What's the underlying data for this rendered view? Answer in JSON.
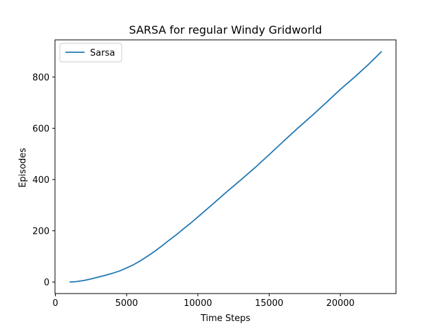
{
  "chart_data": {
    "type": "line",
    "title": "SARSA for regular Windy Gridworld",
    "xlabel": "Time Steps",
    "ylabel": "Episodes",
    "xlim": [
      -24,
      23900
    ],
    "ylim": [
      -45,
      945
    ],
    "xticks": [
      0,
      5000,
      10000,
      15000,
      20000
    ],
    "xtick_labels": [
      "0",
      "5000",
      "10000",
      "15000",
      "20000"
    ],
    "yticks": [
      0,
      200,
      400,
      600,
      800
    ],
    "ytick_labels": [
      "0",
      "200",
      "400",
      "600",
      "800"
    ],
    "grid": false,
    "legend_position": "top-left",
    "colors": {
      "series": "#1f77b4",
      "axis": "#000000",
      "legend_border": "#cccccc"
    },
    "series": [
      {
        "name": "Sarsa",
        "x": [
          1000,
          1500,
          2000,
          2500,
          3000,
          3500,
          4000,
          4500,
          5000,
          5500,
          6000,
          6500,
          7000,
          7500,
          8000,
          8500,
          9000,
          9500,
          10000,
          11000,
          12000,
          13000,
          14000,
          15000,
          16000,
          17000,
          18000,
          19000,
          20000,
          21000,
          22000,
          22900
        ],
        "y": [
          0,
          2,
          6,
          12,
          19,
          26,
          34,
          43,
          55,
          68,
          84,
          102,
          121,
          142,
          164,
          185,
          208,
          230,
          254,
          302,
          351,
          398,
          446,
          497,
          549,
          600,
          649,
          700,
          752,
          800,
          851,
          900
        ]
      }
    ]
  }
}
